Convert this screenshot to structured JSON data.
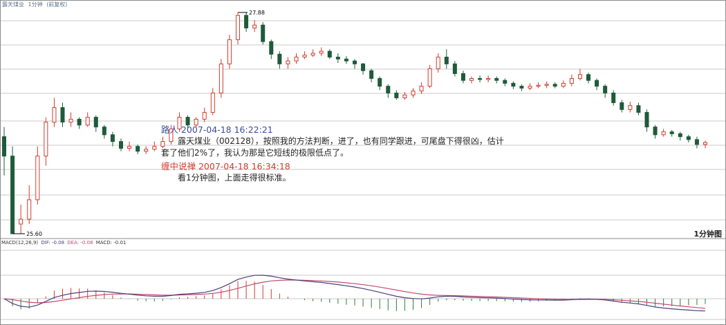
{
  "header": {
    "stock_name": "露天煤业",
    "period": "1分钟",
    "adjust": "(前复权)"
  },
  "price_chart": {
    "high_label": "27.88",
    "low_label": "25.60",
    "corner_label": "1分钟图"
  },
  "macd_header": {
    "params": "MACD(12,26,9)",
    "dif": "DIF: -0.08",
    "dea": "DEA: -0.08",
    "macd": "MACD: -0.01"
  },
  "comments": [
    {
      "user_line": "路人 2007-04-18 16:22:21",
      "lines": [
        "露天煤业（002128），按照我的方法判断，进了，也有同学跟进，可尾盘下得很凶，估计",
        "套了他们2%了，我认为那是它短线的极限低点了。"
      ]
    },
    {
      "user_line": "缠中说禅 2007-04-18 16:34:18",
      "lines": [
        "看1分钟图，上面走得很标准。"
      ]
    }
  ],
  "colors": {
    "up": "#d23a2c",
    "down": "#1f5a3a",
    "dif": "#4a3d7c",
    "dea": "#c04a6c",
    "grid": "#c9c9c9"
  },
  "chart_data": {
    "type": "candlestick",
    "title": "",
    "price_range": [
      25.6,
      27.88
    ],
    "candles": [
      [
        26.6,
        26.4,
        26.7,
        26.2
      ],
      [
        26.4,
        25.6,
        26.5,
        25.6
      ],
      [
        25.7,
        25.75,
        25.9,
        25.6
      ],
      [
        25.75,
        25.95,
        26.1,
        25.7
      ],
      [
        25.95,
        26.4,
        26.5,
        25.9
      ],
      [
        26.4,
        26.75,
        26.8,
        26.3
      ],
      [
        26.75,
        26.9,
        27.0,
        26.7
      ],
      [
        26.9,
        26.75,
        26.95,
        26.7
      ],
      [
        26.75,
        26.78,
        26.85,
        26.7
      ],
      [
        26.78,
        26.72,
        26.8,
        26.68
      ],
      [
        26.72,
        26.8,
        26.85,
        26.7
      ],
      [
        26.8,
        26.7,
        26.82,
        26.65
      ],
      [
        26.7,
        26.62,
        26.72,
        26.58
      ],
      [
        26.62,
        26.55,
        26.65,
        26.5
      ],
      [
        26.55,
        26.48,
        26.58,
        26.45
      ],
      [
        26.48,
        26.5,
        26.55,
        26.45
      ],
      [
        26.5,
        26.45,
        26.52,
        26.42
      ],
      [
        26.45,
        26.47,
        26.5,
        26.42
      ],
      [
        26.47,
        26.5,
        26.55,
        26.45
      ],
      [
        26.5,
        26.55,
        26.6,
        26.48
      ],
      [
        26.55,
        26.68,
        26.72,
        26.52
      ],
      [
        26.68,
        26.8,
        26.85,
        26.65
      ],
      [
        26.8,
        26.72,
        26.82,
        26.68
      ],
      [
        26.72,
        26.78,
        26.8,
        26.7
      ],
      [
        26.78,
        26.85,
        26.9,
        26.75
      ],
      [
        26.85,
        27.05,
        27.1,
        26.82
      ],
      [
        27.05,
        27.35,
        27.4,
        27.0
      ],
      [
        27.35,
        27.6,
        27.65,
        27.3
      ],
      [
        27.6,
        27.85,
        27.88,
        27.55
      ],
      [
        27.85,
        27.72,
        27.88,
        27.68
      ],
      [
        27.72,
        27.75,
        27.8,
        27.68
      ],
      [
        27.75,
        27.58,
        27.78,
        27.55
      ],
      [
        27.58,
        27.45,
        27.6,
        27.4
      ],
      [
        27.45,
        27.35,
        27.48,
        27.3
      ],
      [
        27.35,
        27.38,
        27.42,
        27.3
      ],
      [
        27.38,
        27.42,
        27.46,
        27.35
      ],
      [
        27.42,
        27.44,
        27.48,
        27.4
      ],
      [
        27.44,
        27.46,
        27.5,
        27.42
      ],
      [
        27.46,
        27.48,
        27.52,
        27.43
      ],
      [
        27.48,
        27.42,
        27.5,
        27.4
      ],
      [
        27.42,
        27.4,
        27.46,
        27.36
      ],
      [
        27.4,
        27.38,
        27.43,
        27.35
      ],
      [
        27.38,
        27.35,
        27.4,
        27.3
      ],
      [
        27.35,
        27.28,
        27.36,
        27.24
      ],
      [
        27.28,
        27.2,
        27.3,
        27.16
      ],
      [
        27.2,
        27.12,
        27.22,
        27.08
      ],
      [
        27.12,
        27.05,
        27.14,
        27.0
      ],
      [
        27.05,
        27.0,
        27.08,
        26.98
      ],
      [
        27.0,
        27.03,
        27.06,
        26.98
      ],
      [
        27.03,
        27.07,
        27.1,
        27.0
      ],
      [
        27.07,
        27.12,
        27.16,
        27.04
      ],
      [
        27.12,
        27.3,
        27.34,
        27.1
      ],
      [
        27.3,
        27.42,
        27.46,
        27.26
      ],
      [
        27.42,
        27.35,
        27.5,
        27.3
      ],
      [
        27.35,
        27.25,
        27.38,
        27.22
      ],
      [
        27.25,
        27.18,
        27.28,
        27.15
      ],
      [
        27.18,
        27.2,
        27.22,
        27.15
      ],
      [
        27.2,
        27.19,
        27.23,
        27.16
      ],
      [
        27.19,
        27.2,
        27.23,
        27.16
      ],
      [
        27.2,
        27.18,
        27.22,
        27.15
      ],
      [
        27.18,
        27.15,
        27.2,
        27.12
      ],
      [
        27.15,
        27.12,
        27.17,
        27.09
      ],
      [
        27.12,
        27.1,
        27.14,
        27.07
      ],
      [
        27.1,
        27.12,
        27.15,
        27.08
      ],
      [
        27.12,
        27.13,
        27.16,
        27.1
      ],
      [
        27.13,
        27.14,
        27.17,
        27.1
      ],
      [
        27.14,
        27.12,
        27.16,
        27.1
      ],
      [
        27.12,
        27.15,
        27.18,
        27.1
      ],
      [
        27.15,
        27.2,
        27.24,
        27.12
      ],
      [
        27.2,
        27.24,
        27.3,
        27.18
      ],
      [
        27.24,
        27.18,
        27.26,
        27.15
      ],
      [
        27.18,
        27.12,
        27.2,
        27.08
      ],
      [
        27.12,
        27.05,
        27.14,
        27.0
      ],
      [
        27.05,
        26.95,
        27.08,
        26.92
      ],
      [
        26.95,
        26.88,
        26.98,
        26.85
      ],
      [
        26.88,
        26.92,
        26.96,
        26.85
      ],
      [
        26.92,
        26.85,
        26.95,
        26.82
      ],
      [
        26.85,
        26.7,
        26.88,
        26.65
      ],
      [
        26.7,
        26.62,
        26.72,
        26.58
      ],
      [
        26.62,
        26.65,
        26.68,
        26.6
      ],
      [
        26.65,
        26.63,
        26.67,
        26.6
      ],
      [
        26.63,
        26.6,
        26.65,
        26.56
      ],
      [
        26.6,
        26.57,
        26.62,
        26.54
      ],
      [
        26.57,
        26.52,
        26.6,
        26.48
      ],
      [
        26.52,
        26.54,
        26.56,
        26.48
      ]
    ]
  }
}
